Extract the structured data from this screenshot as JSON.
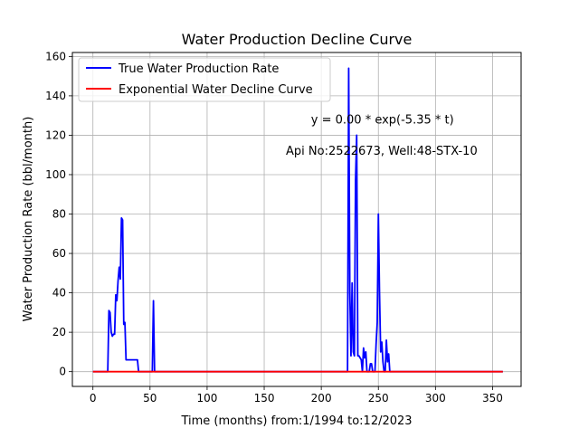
{
  "chart_data": {
    "type": "line",
    "title": "Water Production Decline Curve",
    "xlabel": "Time (months) from:1/1994 to:12/2023",
    "ylabel": "Water Production Rate (bbl/month)",
    "xlim": [
      -18,
      375
    ],
    "ylim": [
      -7.5,
      162
    ],
    "xticks": [
      0,
      50,
      100,
      150,
      200,
      250,
      300,
      350
    ],
    "yticks": [
      0,
      20,
      40,
      60,
      80,
      100,
      120,
      140,
      160
    ],
    "grid": true,
    "legend_position": "top-left",
    "annotations": [
      {
        "text": "y = 0.00 * exp(-5.35 * t)",
        "x": 191,
        "y": 126
      },
      {
        "text": "Api No:2522673, Well:48-STX-10",
        "x": 169,
        "y": 110
      }
    ],
    "series": [
      {
        "name": "True Water Production Rate",
        "color": "#0000ff",
        "x": [
          0,
          13,
          14,
          15,
          16,
          17,
          18,
          19,
          20,
          21,
          22,
          23,
          24,
          25,
          26,
          27,
          28,
          29,
          30,
          31,
          32,
          33,
          34,
          35,
          36,
          37,
          38,
          39,
          40,
          41,
          42,
          43,
          44,
          45,
          46,
          47,
          48,
          49,
          50,
          51,
          52,
          53,
          54,
          55,
          56,
          60,
          100,
          150,
          200,
          222,
          223,
          224,
          225,
          226,
          227,
          228,
          229,
          230,
          231,
          232,
          233,
          234,
          235,
          236,
          237,
          238,
          239,
          240,
          241,
          242,
          243,
          244,
          245,
          246,
          247,
          248,
          249,
          250,
          251,
          252,
          253,
          254,
          255,
          256,
          257,
          258,
          259,
          260,
          261,
          262,
          263,
          264,
          265,
          266,
          267,
          268,
          269,
          270,
          271,
          300,
          359
        ],
        "y": [
          0,
          0,
          31,
          30,
          20,
          18,
          19,
          19,
          39,
          36,
          46,
          53,
          47,
          78,
          77,
          24,
          25,
          6,
          6,
          6,
          6,
          6,
          6,
          6,
          6,
          6,
          6,
          6,
          0,
          0,
          0,
          0,
          0,
          0,
          0,
          0,
          0,
          0,
          0,
          0,
          0,
          36,
          0,
          0,
          0,
          0,
          0,
          0,
          0,
          0,
          0,
          154,
          40,
          8,
          45,
          10,
          8,
          97,
          120,
          8,
          8,
          7,
          6,
          0,
          12,
          7,
          10,
          0,
          0,
          0,
          4,
          4,
          0,
          0,
          0,
          14,
          25,
          80,
          40,
          10,
          15,
          5,
          0,
          0,
          16,
          5,
          9,
          0,
          0,
          0,
          0,
          0,
          0,
          0,
          0,
          0,
          0,
          0,
          0,
          0,
          0
        ]
      },
      {
        "name": "Exponential Water Decline Curve",
        "color": "#ff0000",
        "x": [
          0,
          359
        ],
        "y": [
          0,
          0
        ]
      }
    ]
  }
}
